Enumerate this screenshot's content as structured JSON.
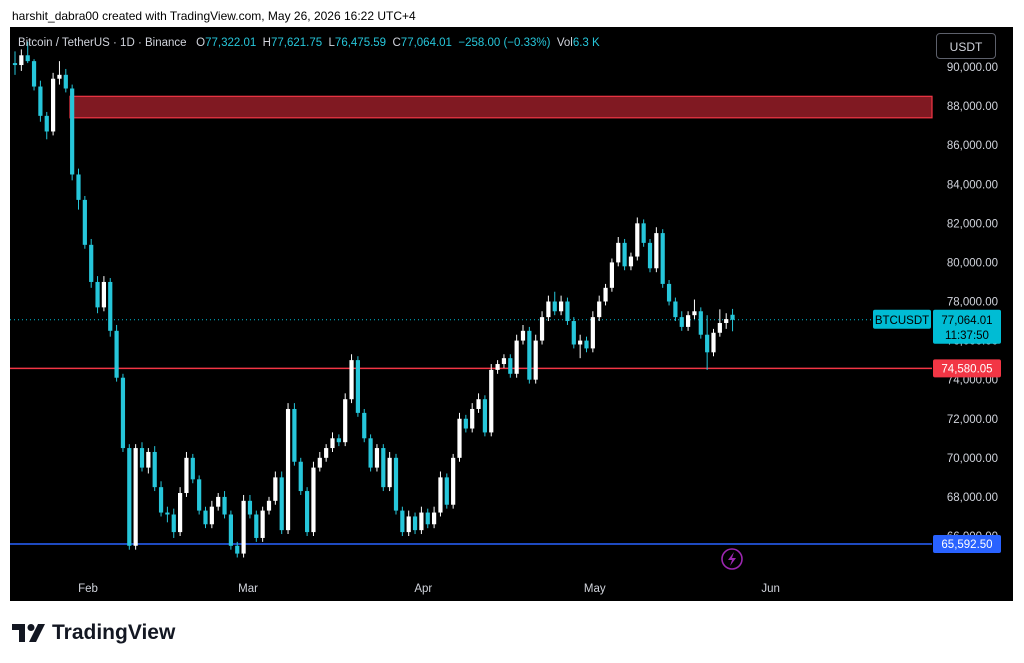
{
  "caption": "harshit_dabra00 created with TradingView.com, May 26, 2026 16:22 UTC+4",
  "legend": {
    "symbol": "Bitcoin / TetherUS · 1D · Binance",
    "o_label": "O",
    "o_value": "77,322.01",
    "h_label": "H",
    "h_value": "77,621.75",
    "l_label": "L",
    "l_value": "76,475.59",
    "c_label": "C",
    "c_value": "77,064.01",
    "change": "−258.00 (−0.33%)",
    "vol_label": "Vol",
    "vol_value": "6.3 K"
  },
  "quote_currency": "USDT",
  "brand": {
    "name": "TradingView",
    "logo_icon": "tradingview-logo-icon"
  },
  "colors": {
    "up": "#ffffff",
    "down": "#26c6da",
    "support": "#2962ff",
    "resistance": "#f23645",
    "level_line": "#ff5252",
    "box_line": "#2962ff",
    "accent": "#00bcd4"
  },
  "chart_data": {
    "type": "candlestick",
    "symbol": "BTCUSDT",
    "interval": "1D",
    "x_ticks": [
      "Feb",
      "Mar",
      "Apr",
      "May",
      "Jun"
    ],
    "y_ticks": [
      "66,000.00",
      "68,000.00",
      "70,000.00",
      "72,000.00",
      "74,000.00",
      "76,000.00",
      "78,000.00",
      "80,000.00",
      "82,000.00",
      "84,000.00",
      "86,000.00",
      "88,000.00",
      "90,000.00"
    ],
    "ylim": [
      64500,
      91500
    ],
    "last_price": {
      "label": "BTCUSDT",
      "value": "77,064.01",
      "countdown": "11:37:50",
      "price": 77064.01
    },
    "horizontal_levels": [
      {
        "label": "74,580.05",
        "price": 74580.05,
        "color": "#f23645"
      },
      {
        "label": "65,592.50",
        "price": 65592.5,
        "color": "#2962ff"
      }
    ],
    "resistance_zone": {
      "from": 87400,
      "to": 88500
    },
    "candles": [
      [
        90200,
        90800,
        89600,
        90100
      ],
      [
        90100,
        90900,
        89800,
        90600
      ],
      [
        90600,
        91300,
        90200,
        90300
      ],
      [
        90300,
        90400,
        88800,
        89000
      ],
      [
        89000,
        89300,
        87200,
        87500
      ],
      [
        87500,
        87700,
        86300,
        86700
      ],
      [
        86700,
        89700,
        86500,
        89400
      ],
      [
        89400,
        90300,
        89100,
        89600
      ],
      [
        89600,
        89900,
        88700,
        88900
      ],
      [
        88900,
        89100,
        84200,
        84500
      ],
      [
        84500,
        84800,
        82700,
        83200
      ],
      [
        83200,
        83400,
        80700,
        80900
      ],
      [
        80900,
        81200,
        78700,
        79000
      ],
      [
        79000,
        79300,
        77400,
        77700
      ],
      [
        77700,
        79300,
        77500,
        79000
      ],
      [
        79000,
        79200,
        76200,
        76500
      ],
      [
        76500,
        76800,
        73900,
        74100
      ],
      [
        74100,
        74300,
        70300,
        70500
      ],
      [
        70500,
        70700,
        65300,
        65500
      ],
      [
        65500,
        70700,
        65300,
        70500
      ],
      [
        70500,
        70800,
        69300,
        69500
      ],
      [
        69500,
        70500,
        69200,
        70300
      ],
      [
        70300,
        70600,
        68300,
        68500
      ],
      [
        68500,
        68800,
        67000,
        67200
      ],
      [
        67200,
        67500,
        66700,
        67100
      ],
      [
        67100,
        67400,
        65900,
        66200
      ],
      [
        66200,
        68500,
        66000,
        68200
      ],
      [
        68200,
        70300,
        68000,
        70000
      ],
      [
        70000,
        70200,
        68700,
        68900
      ],
      [
        68900,
        69100,
        67100,
        67300
      ],
      [
        67300,
        67500,
        66400,
        66600
      ],
      [
        66600,
        67800,
        66400,
        67500
      ],
      [
        67500,
        68200,
        67300,
        68000
      ],
      [
        68000,
        68300,
        66900,
        67100
      ],
      [
        67100,
        67300,
        65300,
        65500
      ],
      [
        65500,
        65700,
        64900,
        65100
      ],
      [
        65100,
        68100,
        64900,
        67800
      ],
      [
        67800,
        68100,
        66900,
        67100
      ],
      [
        67100,
        67300,
        65700,
        65900
      ],
      [
        65900,
        67500,
        65700,
        67300
      ],
      [
        67300,
        68000,
        67100,
        67800
      ],
      [
        67800,
        69300,
        67600,
        69000
      ],
      [
        69000,
        69300,
        66100,
        66300
      ],
      [
        66300,
        72800,
        66100,
        72500
      ],
      [
        72500,
        72800,
        69600,
        69800
      ],
      [
        69800,
        70000,
        68100,
        68300
      ],
      [
        68300,
        68500,
        66000,
        66200
      ],
      [
        66200,
        69800,
        66000,
        69500
      ],
      [
        69500,
        70300,
        69300,
        70000
      ],
      [
        70000,
        70700,
        69800,
        70500
      ],
      [
        70500,
        71300,
        70300,
        71000
      ],
      [
        71000,
        71200,
        70600,
        70800
      ],
      [
        70800,
        73300,
        70600,
        73000
      ],
      [
        73000,
        75300,
        72800,
        75000
      ],
      [
        75000,
        75200,
        72100,
        72300
      ],
      [
        72300,
        72500,
        70800,
        71000
      ],
      [
        71000,
        71200,
        69300,
        69500
      ],
      [
        69500,
        70700,
        69300,
        70500
      ],
      [
        70500,
        70700,
        68300,
        68500
      ],
      [
        68500,
        70300,
        68300,
        70000
      ],
      [
        70000,
        70200,
        67100,
        67300
      ],
      [
        67300,
        67500,
        66000,
        66200
      ],
      [
        66200,
        67300,
        66000,
        67000
      ],
      [
        67000,
        67200,
        66100,
        66300
      ],
      [
        66300,
        67500,
        66100,
        67200
      ],
      [
        67200,
        67400,
        66400,
        66600
      ],
      [
        66600,
        67500,
        66400,
        67200
      ],
      [
        67200,
        69300,
        67000,
        69000
      ],
      [
        69000,
        69200,
        67400,
        67600
      ],
      [
        67600,
        70200,
        67400,
        70000
      ],
      [
        70000,
        72300,
        69800,
        72000
      ],
      [
        72000,
        72200,
        71300,
        71500
      ],
      [
        71500,
        72800,
        71300,
        72500
      ],
      [
        72500,
        73300,
        72300,
        73000
      ],
      [
        73000,
        73200,
        71100,
        71300
      ],
      [
        71300,
        74800,
        71100,
        74500
      ],
      [
        74500,
        75000,
        74300,
        74800
      ],
      [
        74800,
        75300,
        74600,
        75100
      ],
      [
        75100,
        75300,
        74100,
        74300
      ],
      [
        74300,
        76300,
        74100,
        76000
      ],
      [
        76000,
        76800,
        75800,
        76500
      ],
      [
        76500,
        76700,
        73800,
        74000
      ],
      [
        74000,
        76300,
        73800,
        76000
      ],
      [
        76000,
        77500,
        75800,
        77200
      ],
      [
        77200,
        78300,
        77000,
        78000
      ],
      [
        78000,
        78500,
        77300,
        77500
      ],
      [
        77500,
        78300,
        77300,
        78000
      ],
      [
        78000,
        78200,
        76800,
        77000
      ],
      [
        77000,
        77200,
        75600,
        75800
      ],
      [
        75800,
        76300,
        75100,
        76000
      ],
      [
        76000,
        76200,
        75400,
        75600
      ],
      [
        75600,
        77500,
        75400,
        77200
      ],
      [
        77200,
        78300,
        77000,
        78000
      ],
      [
        78000,
        78900,
        77800,
        78700
      ],
      [
        78700,
        80200,
        78500,
        80000
      ],
      [
        80000,
        81300,
        79800,
        81000
      ],
      [
        81000,
        81200,
        79600,
        79800
      ],
      [
        79800,
        80500,
        79600,
        80300
      ],
      [
        80300,
        82300,
        80100,
        82000
      ],
      [
        82000,
        82200,
        80800,
        81000
      ],
      [
        81000,
        81200,
        79500,
        79700
      ],
      [
        79700,
        81800,
        79500,
        81500
      ],
      [
        81500,
        81700,
        78700,
        78900
      ],
      [
        78900,
        79100,
        77800,
        78000
      ],
      [
        78000,
        78200,
        77000,
        77200
      ],
      [
        77200,
        77500,
        76500,
        76700
      ],
      [
        76700,
        77500,
        76500,
        77300
      ],
      [
        77300,
        78100,
        77100,
        77500
      ],
      [
        77500,
        77700,
        76100,
        76300
      ],
      [
        76300,
        77300,
        74500,
        75400
      ],
      [
        75400,
        76600,
        75200,
        76400
      ],
      [
        76400,
        77600,
        76200,
        76900
      ],
      [
        76900,
        77400,
        76600,
        77100
      ],
      [
        77322.01,
        77621.75,
        76475.59,
        77064.01
      ]
    ]
  }
}
